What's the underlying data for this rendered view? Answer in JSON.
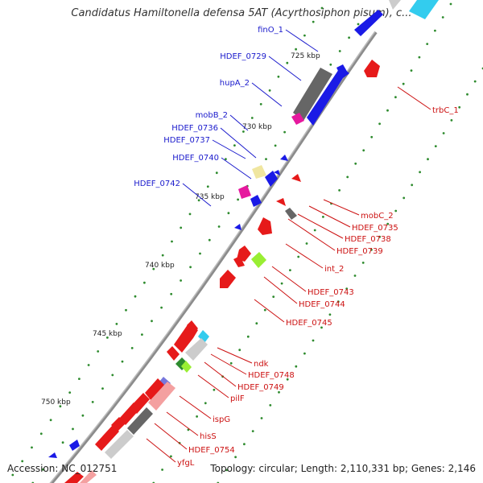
{
  "title": "Candidatus Hamiltonella defensa 5AT (Acyrthosiphon pisum), c...",
  "footer": {
    "accession": "Accession: NC_012751",
    "summary": "Topology: circular; Length: 2,110,331 bp; Genes: 2,146"
  },
  "colors": {
    "backbone": "#8c8c8c",
    "tick": "#2e8b2e",
    "forward_label": "#1a1acc",
    "reverse_label": "#cc1111",
    "forward_gene": "#1a1ae6",
    "reverse_gene": "#e61a1a",
    "gray_gene": "#666666",
    "light_gray_gene": "#cccccc",
    "magenta_gene": "#e6199e",
    "yellow_gene": "#f0e6a0",
    "lime_gene": "#99ee33",
    "cyan_gene": "#33ccee",
    "purple_gene": "#7777dd",
    "pink_gene": "#f4a0a0"
  },
  "scale_labels": [
    "725 kbp",
    "730 kbp",
    "735 kbp",
    "740 kbp",
    "745 kbp",
    "750 kbp"
  ],
  "forward_labels": [
    "finO_1",
    "HDEF_0729",
    "hupA_2",
    "mobB_2",
    "HDEF_0736",
    "HDEF_0737",
    "HDEF_0740",
    "HDEF_0742"
  ],
  "reverse_labels": [
    "trbC_1",
    "mobC_2",
    "HDEF_0735",
    "HDEF_0738",
    "HDEF_0739",
    "int_2",
    "HDEF_0743",
    "HDEF_0744",
    "HDEF_0745",
    "ndk",
    "HDEF_0748",
    "HDEF_0749",
    "pilF",
    "ispG",
    "hisS",
    "HDEF_0754",
    "yfgL"
  ]
}
